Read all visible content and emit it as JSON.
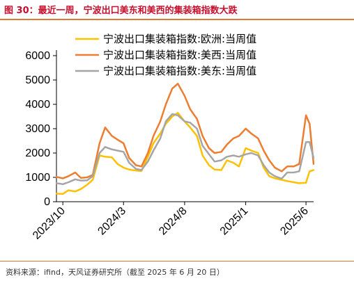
{
  "header": {
    "title": "图 30：最近一周，宁波出口美东和美西的集装箱指数大跌"
  },
  "footer": {
    "source": "资料来源：ifind，天风证券研究所（截至 2025 年 6 月 20 日）"
  },
  "colors": {
    "accent": "#e07a2e",
    "title": "#c8102e"
  },
  "chart_data": {
    "type": "line",
    "title": "",
    "xlabel": "",
    "ylabel": "",
    "ylim": [
      0,
      6000
    ],
    "yticks": [
      0,
      1000,
      2000,
      3000,
      4000,
      5000,
      6000
    ],
    "xticks": [
      "2023/10",
      "2024/3",
      "2024/8",
      "2025/1",
      "2025/6"
    ],
    "x_tick_dates": [
      "2023-10-01",
      "2024-03-01",
      "2024-08-01",
      "2025-01-01",
      "2025-06-01"
    ],
    "x_range": [
      "2023-09-15",
      "2025-06-20"
    ],
    "grid": false,
    "legend_position": "top",
    "series": [
      {
        "name": "宁波出口集装箱指数:欧洲:当周值",
        "color": "#ffc000",
        "points": [
          [
            "2023-09-15",
            330
          ],
          [
            "2023-10-01",
            320
          ],
          [
            "2023-10-15",
            470
          ],
          [
            "2023-11-01",
            420
          ],
          [
            "2023-11-15",
            520
          ],
          [
            "2023-12-01",
            700
          ],
          [
            "2023-12-15",
            900
          ],
          [
            "2024-01-01",
            1900
          ],
          [
            "2024-01-15",
            1850
          ],
          [
            "2024-02-01",
            1820
          ],
          [
            "2024-02-15",
            1550
          ],
          [
            "2024-03-01",
            1400
          ],
          [
            "2024-03-15",
            1320
          ],
          [
            "2024-04-01",
            1280
          ],
          [
            "2024-04-15",
            1260
          ],
          [
            "2024-05-01",
            1850
          ],
          [
            "2024-05-15",
            2400
          ],
          [
            "2024-06-01",
            2800
          ],
          [
            "2024-06-15",
            3200
          ],
          [
            "2024-07-01",
            3500
          ],
          [
            "2024-07-15",
            3650
          ],
          [
            "2024-08-01",
            3300
          ],
          [
            "2024-08-15",
            3050
          ],
          [
            "2024-09-01",
            2700
          ],
          [
            "2024-09-15",
            1900
          ],
          [
            "2024-10-01",
            1500
          ],
          [
            "2024-10-15",
            1320
          ],
          [
            "2024-11-01",
            1300
          ],
          [
            "2024-11-15",
            1700
          ],
          [
            "2024-12-01",
            1600
          ],
          [
            "2024-12-15",
            1450
          ],
          [
            "2025-01-01",
            2200
          ],
          [
            "2025-01-15",
            2100
          ],
          [
            "2025-02-01",
            2000
          ],
          [
            "2025-02-15",
            1400
          ],
          [
            "2025-03-01",
            1050
          ],
          [
            "2025-03-15",
            960
          ],
          [
            "2025-04-01",
            900
          ],
          [
            "2025-04-15",
            850
          ],
          [
            "2025-05-01",
            800
          ],
          [
            "2025-05-15",
            760
          ],
          [
            "2025-06-01",
            780
          ],
          [
            "2025-06-10",
            1250
          ],
          [
            "2025-06-20",
            1300
          ]
        ]
      },
      {
        "name": "宁波出口集装箱指数:美西:当周值",
        "color": "#ed7d31",
        "points": [
          [
            "2023-09-15",
            1020
          ],
          [
            "2023-10-01",
            960
          ],
          [
            "2023-10-15",
            1050
          ],
          [
            "2023-11-01",
            1200
          ],
          [
            "2023-11-15",
            980
          ],
          [
            "2023-12-01",
            1000
          ],
          [
            "2023-12-15",
            1100
          ],
          [
            "2024-01-01",
            2400
          ],
          [
            "2024-01-15",
            3050
          ],
          [
            "2024-02-01",
            2700
          ],
          [
            "2024-02-15",
            2550
          ],
          [
            "2024-03-01",
            2400
          ],
          [
            "2024-03-15",
            1800
          ],
          [
            "2024-04-01",
            1500
          ],
          [
            "2024-04-15",
            1450
          ],
          [
            "2024-05-01",
            2000
          ],
          [
            "2024-05-15",
            2700
          ],
          [
            "2024-06-01",
            3300
          ],
          [
            "2024-06-15",
            4000
          ],
          [
            "2024-07-01",
            4650
          ],
          [
            "2024-07-15",
            4850
          ],
          [
            "2024-08-01",
            4350
          ],
          [
            "2024-08-15",
            3800
          ],
          [
            "2024-09-01",
            3400
          ],
          [
            "2024-09-15",
            2700
          ],
          [
            "2024-10-01",
            2200
          ],
          [
            "2024-10-15",
            2000
          ],
          [
            "2024-11-01",
            2050
          ],
          [
            "2024-11-15",
            2350
          ],
          [
            "2024-12-01",
            2600
          ],
          [
            "2024-12-15",
            2700
          ],
          [
            "2025-01-01",
            3000
          ],
          [
            "2025-01-15",
            2800
          ],
          [
            "2025-02-01",
            2600
          ],
          [
            "2025-02-15",
            2100
          ],
          [
            "2025-03-01",
            1700
          ],
          [
            "2025-03-15",
            1400
          ],
          [
            "2025-04-01",
            1250
          ],
          [
            "2025-04-15",
            1450
          ],
          [
            "2025-05-01",
            1450
          ],
          [
            "2025-05-15",
            1550
          ],
          [
            "2025-06-01",
            3550
          ],
          [
            "2025-06-10",
            3200
          ],
          [
            "2025-06-20",
            1550
          ]
        ]
      },
      {
        "name": "宁波出口集装箱指数:美东:当周值",
        "color": "#a5a5a5",
        "points": [
          [
            "2023-09-15",
            760
          ],
          [
            "2023-10-01",
            720
          ],
          [
            "2023-10-15",
            800
          ],
          [
            "2023-11-01",
            920
          ],
          [
            "2023-11-15",
            870
          ],
          [
            "2023-12-01",
            880
          ],
          [
            "2023-12-15",
            1050
          ],
          [
            "2024-01-01",
            2000
          ],
          [
            "2024-01-15",
            2250
          ],
          [
            "2024-02-01",
            2150
          ],
          [
            "2024-02-15",
            2100
          ],
          [
            "2024-03-01",
            2050
          ],
          [
            "2024-03-15",
            1600
          ],
          [
            "2024-04-01",
            1350
          ],
          [
            "2024-04-15",
            1300
          ],
          [
            "2024-05-01",
            1650
          ],
          [
            "2024-05-15",
            2100
          ],
          [
            "2024-06-01",
            2600
          ],
          [
            "2024-06-15",
            3300
          ],
          [
            "2024-07-01",
            3600
          ],
          [
            "2024-07-15",
            3550
          ],
          [
            "2024-08-01",
            3300
          ],
          [
            "2024-08-15",
            3250
          ],
          [
            "2024-09-01",
            3000
          ],
          [
            "2024-09-15",
            2300
          ],
          [
            "2024-10-01",
            1950
          ],
          [
            "2024-10-15",
            1650
          ],
          [
            "2024-11-01",
            1700
          ],
          [
            "2024-11-15",
            1850
          ],
          [
            "2024-12-01",
            1900
          ],
          [
            "2024-12-15",
            1850
          ],
          [
            "2025-01-01",
            1950
          ],
          [
            "2025-01-15",
            2000
          ],
          [
            "2025-02-01",
            1900
          ],
          [
            "2025-02-15",
            1500
          ],
          [
            "2025-03-01",
            1200
          ],
          [
            "2025-03-15",
            1050
          ],
          [
            "2025-04-01",
            950
          ],
          [
            "2025-04-15",
            1200
          ],
          [
            "2025-05-01",
            1200
          ],
          [
            "2025-05-15",
            1250
          ],
          [
            "2025-06-01",
            2450
          ],
          [
            "2025-06-10",
            2450
          ],
          [
            "2025-06-20",
            1800
          ]
        ]
      }
    ]
  }
}
